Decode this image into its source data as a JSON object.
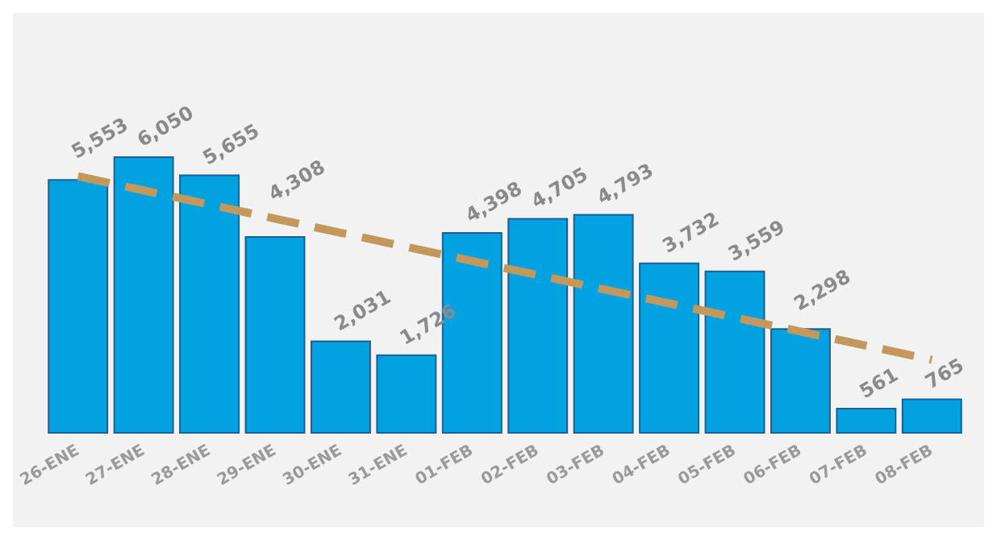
{
  "chart_data": {
    "type": "bar",
    "categories": [
      "26-ENE",
      "27-ENE",
      "28-ENE",
      "29-ENE",
      "30-ENE",
      "31-ENE",
      "01-FEB",
      "02-FEB",
      "03-FEB",
      "04-FEB",
      "05-FEB",
      "06-FEB",
      "07-FEB",
      "08-FEB"
    ],
    "series": [
      {
        "color": "#00a2e2",
        "values": [
          5553,
          6050,
          5655,
          4308,
          2031,
          1726,
          4398,
          4705,
          4793,
          3732,
          3559,
          2298,
          561,
          765
        ],
        "value_labels": [
          "5,553",
          "6,050",
          "5,655",
          "4,308",
          "2,031",
          "1,726",
          "4,398",
          "4,705",
          "4,793",
          "3,732",
          "3,559",
          "2,298",
          "561",
          "765"
        ]
      },
      {
        "type": "line",
        "color": "#c4975a",
        "line_style": "dashed",
        "marker": "none",
        "values": [
          5615,
          5307,
          4999,
          4691,
          4383,
          4075,
          3767,
          3459,
          3151,
          2843,
          2535,
          2227,
          1919,
          1610
        ]
      }
    ]
  }
}
